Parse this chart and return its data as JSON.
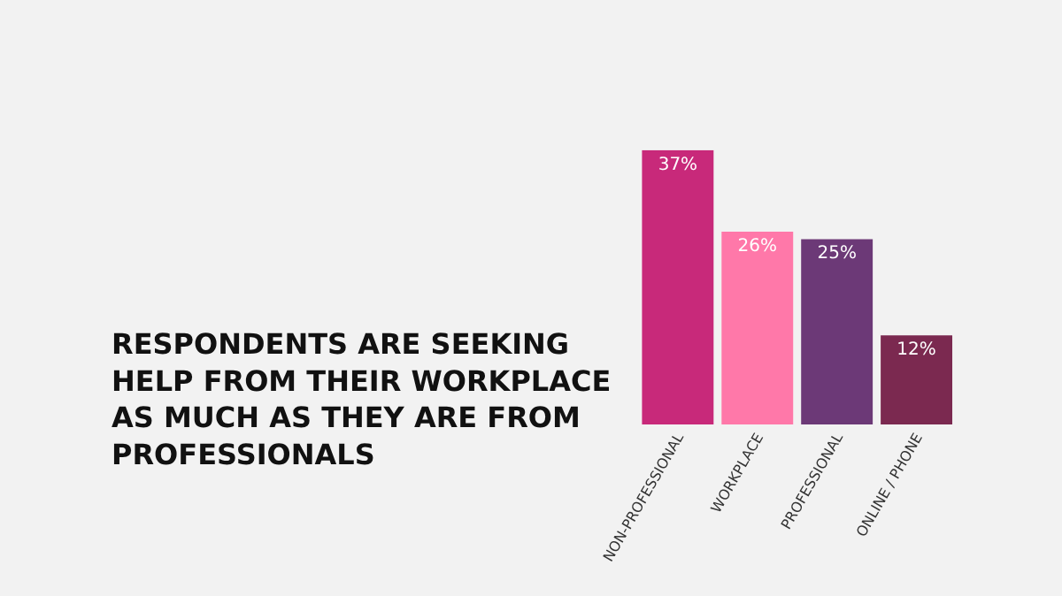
{
  "chart_data": {
    "type": "bar",
    "title": "RESPONDENTS ARE SEEKING HELP FROM THEIR WORKPLACE AS MUCH AS THEY ARE FROM PROFESSIONALS",
    "categories": [
      "NON-PROFESSIONAL",
      "WORKPLACE",
      "PROFESSIONAL",
      "ONLINE / PHONE"
    ],
    "values": [
      37,
      26,
      25,
      12
    ],
    "value_labels": [
      "37%",
      "26%",
      "25%",
      "12%"
    ],
    "colors": [
      "#c8297a",
      "#ff78a9",
      "#6c3977",
      "#7b2950"
    ],
    "grid": false,
    "legend": false
  }
}
